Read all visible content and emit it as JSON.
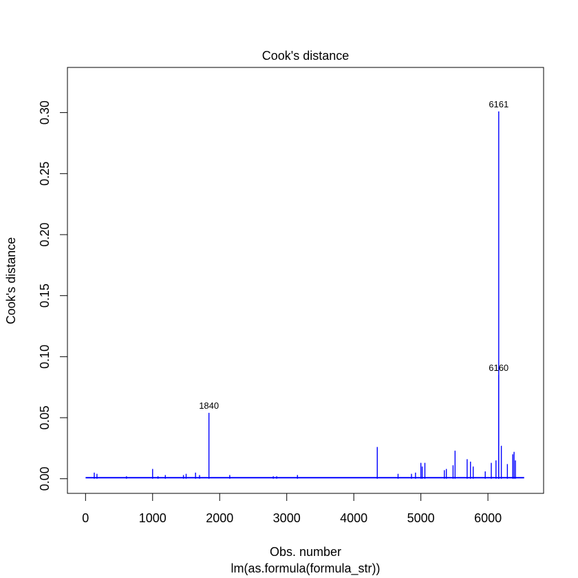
{
  "chart_data": {
    "type": "line",
    "title": "Cook's distance",
    "xlabel": "Obs. number",
    "sublabel": "lm(as.formula(formula_str))",
    "ylabel": "Cook's distance",
    "xlim": [
      -270,
      6830
    ],
    "ylim": [
      -0.012,
      0.337
    ],
    "x_ticks": [
      0,
      1000,
      2000,
      3000,
      4000,
      5000,
      6000
    ],
    "x_tick_labels": [
      "0",
      "1000",
      "2000",
      "3000",
      "4000",
      "5000",
      "6000"
    ],
    "y_ticks": [
      0.0,
      0.05,
      0.1,
      0.15,
      0.2,
      0.25,
      0.3
    ],
    "y_tick_labels": [
      "0.00",
      "0.05",
      "0.10",
      "0.15",
      "0.20",
      "0.25",
      "0.30"
    ],
    "grid": false,
    "series_color": "#0000ff",
    "n_obs": 6540,
    "baseline": 0.0008,
    "spikes": [
      {
        "x": 130,
        "y": 0.005
      },
      {
        "x": 170,
        "y": 0.004
      },
      {
        "x": 610,
        "y": 0.002
      },
      {
        "x": 1000,
        "y": 0.008
      },
      {
        "x": 1080,
        "y": 0.002
      },
      {
        "x": 1190,
        "y": 0.003
      },
      {
        "x": 1460,
        "y": 0.003
      },
      {
        "x": 1500,
        "y": 0.004
      },
      {
        "x": 1640,
        "y": 0.005
      },
      {
        "x": 1700,
        "y": 0.003
      },
      {
        "x": 1840,
        "y": 0.054
      },
      {
        "x": 2150,
        "y": 0.003
      },
      {
        "x": 2800,
        "y": 0.002
      },
      {
        "x": 2850,
        "y": 0.002
      },
      {
        "x": 3160,
        "y": 0.003
      },
      {
        "x": 4350,
        "y": 0.026
      },
      {
        "x": 4660,
        "y": 0.004
      },
      {
        "x": 4860,
        "y": 0.004
      },
      {
        "x": 4920,
        "y": 0.005
      },
      {
        "x": 5000,
        "y": 0.013
      },
      {
        "x": 5020,
        "y": 0.01
      },
      {
        "x": 5060,
        "y": 0.013
      },
      {
        "x": 5350,
        "y": 0.007
      },
      {
        "x": 5380,
        "y": 0.008
      },
      {
        "x": 5480,
        "y": 0.011
      },
      {
        "x": 5510,
        "y": 0.023
      },
      {
        "x": 5690,
        "y": 0.016
      },
      {
        "x": 5740,
        "y": 0.014
      },
      {
        "x": 5780,
        "y": 0.01
      },
      {
        "x": 5960,
        "y": 0.006
      },
      {
        "x": 6050,
        "y": 0.013
      },
      {
        "x": 6120,
        "y": 0.015
      },
      {
        "x": 6160,
        "y": 0.085
      },
      {
        "x": 6161,
        "y": 0.301
      },
      {
        "x": 6200,
        "y": 0.027
      },
      {
        "x": 6290,
        "y": 0.012
      },
      {
        "x": 6370,
        "y": 0.02
      },
      {
        "x": 6390,
        "y": 0.022
      },
      {
        "x": 6410,
        "y": 0.015
      }
    ],
    "annotations": [
      {
        "label": "6161",
        "x": 6161,
        "y": 0.301
      },
      {
        "label": "6160",
        "x": 6160,
        "y": 0.085
      },
      {
        "label": "1840",
        "x": 1840,
        "y": 0.054
      }
    ]
  }
}
